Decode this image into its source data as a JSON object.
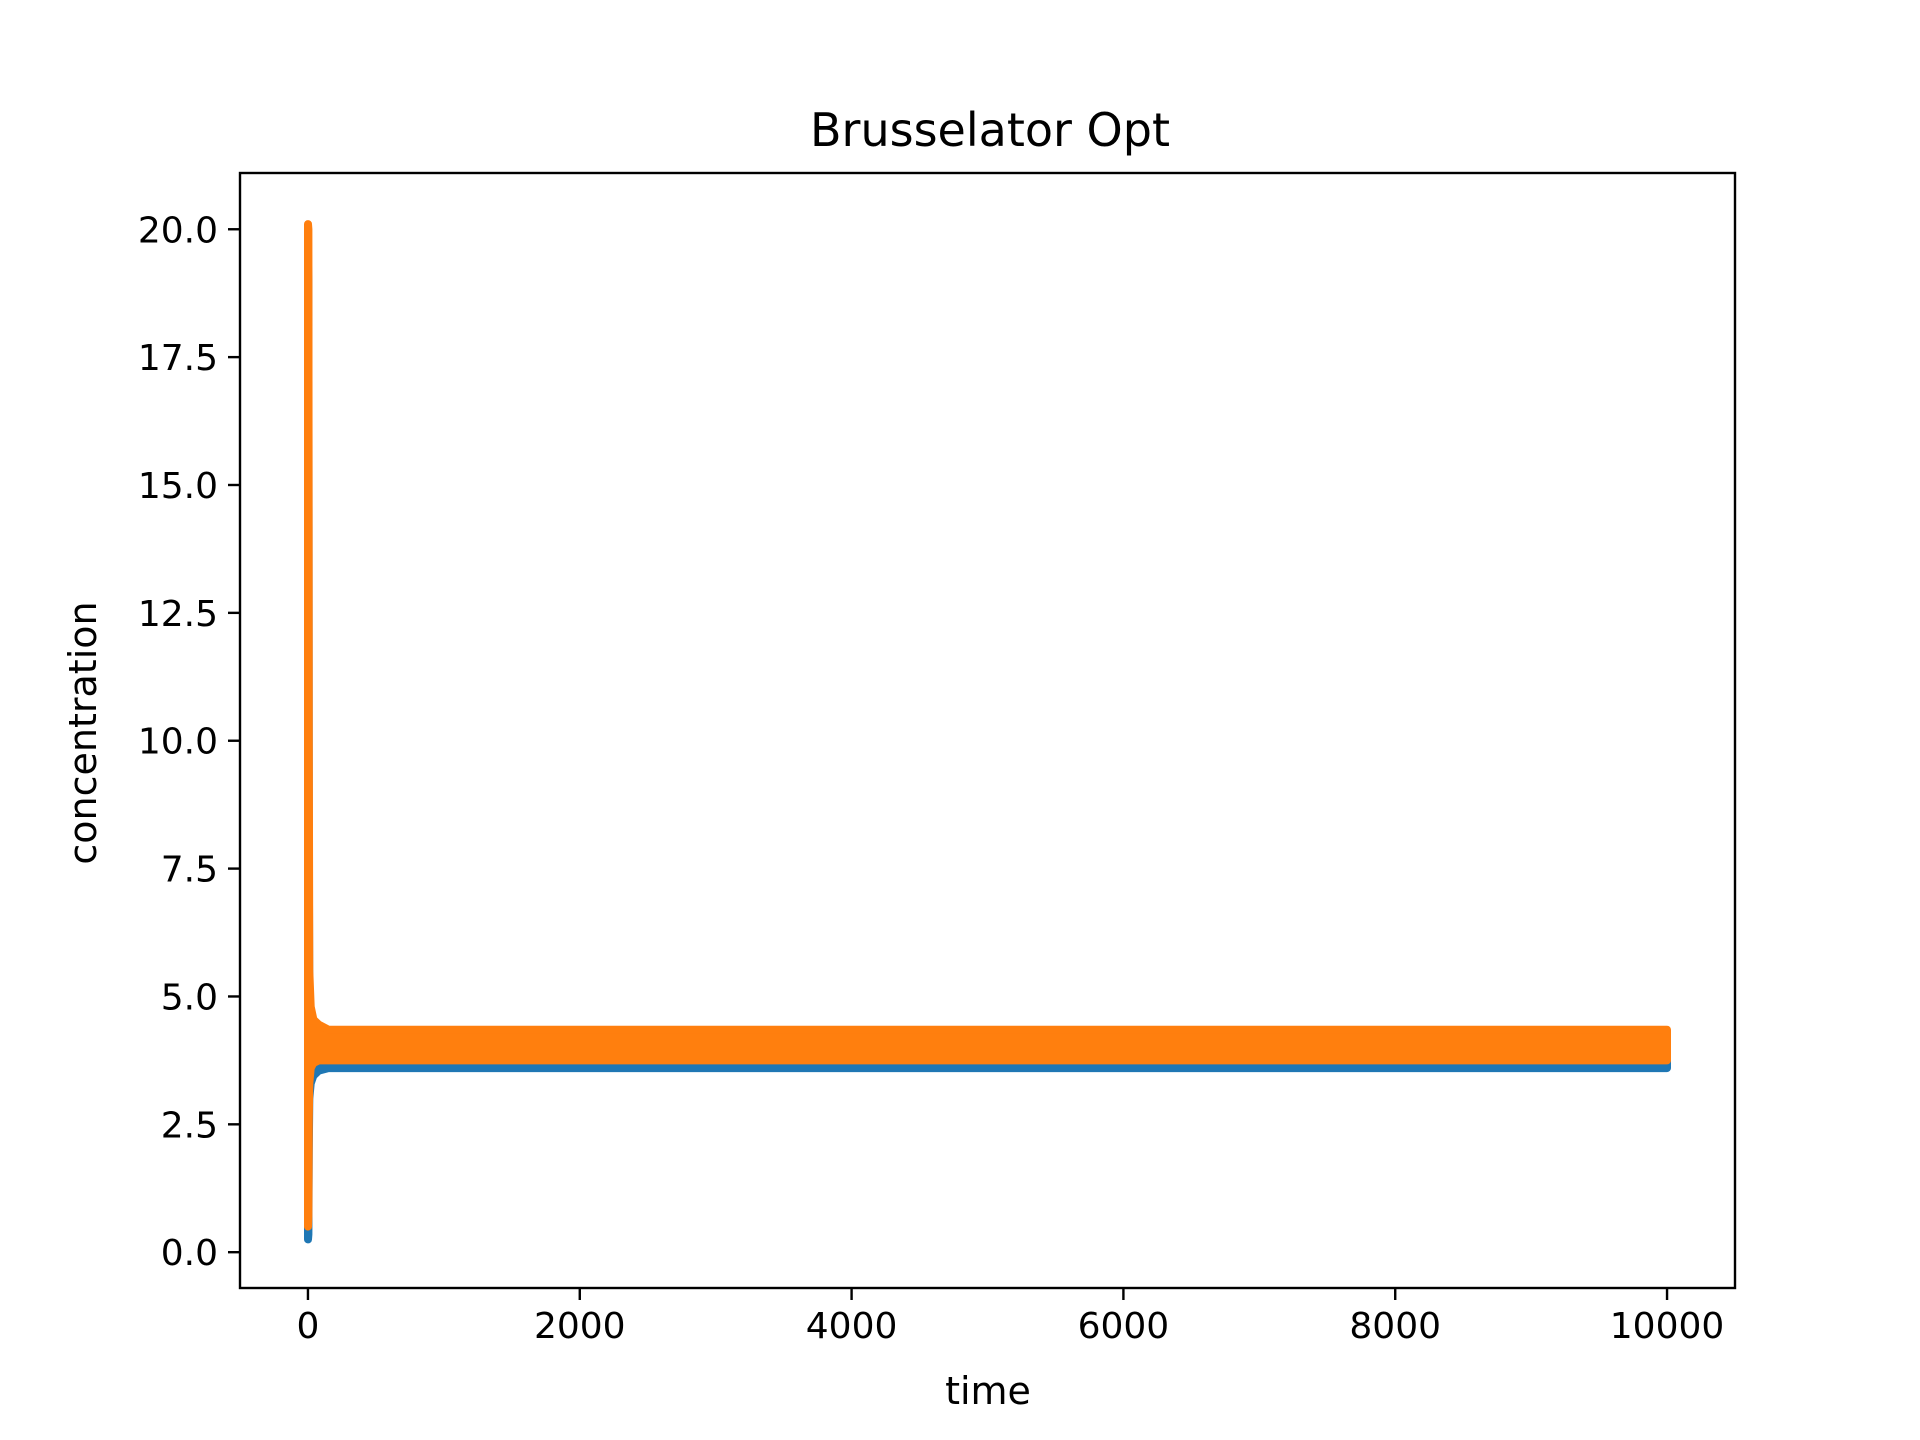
{
  "chart_data": {
    "type": "line",
    "title": "Brusselator Opt",
    "xlabel": "time",
    "ylabel": "concentration",
    "xlim": [
      -500,
      10500
    ],
    "ylim": [
      -0.7,
      21.1
    ],
    "x_ticks": [
      0,
      2000,
      4000,
      6000,
      8000,
      10000
    ],
    "x_tick_labels": [
      "0",
      "2000",
      "4000",
      "6000",
      "8000",
      "10000"
    ],
    "y_ticks": [
      0.0,
      2.5,
      5.0,
      7.5,
      10.0,
      12.5,
      15.0,
      17.5,
      20.0
    ],
    "y_tick_labels": [
      "0.0",
      "2.5",
      "5.0",
      "7.5",
      "10.0",
      "12.5",
      "15.0",
      "17.5",
      "20.0"
    ],
    "grid": false,
    "legend": "none",
    "series": [
      {
        "color": "#1f77b4",
        "x": [
          0,
          3,
          6,
          10,
          20,
          40,
          80,
          150,
          300,
          1000,
          2000,
          4000,
          6000,
          8000,
          10000
        ],
        "y_min": [
          0.25,
          0.35,
          2.0,
          3.0,
          3.3,
          3.45,
          3.55,
          3.6,
          3.6,
          3.6,
          3.6,
          3.6,
          3.6,
          3.6,
          3.6
        ],
        "y_max": [
          19.3,
          19.0,
          8.0,
          5.0,
          4.4,
          4.0,
          3.85,
          3.8,
          3.8,
          3.8,
          3.8,
          3.8,
          3.8,
          3.8,
          3.8
        ]
      },
      {
        "color": "#ff7f0e",
        "x": [
          0,
          3,
          6,
          10,
          20,
          40,
          80,
          150,
          300,
          1000,
          2000,
          4000,
          6000,
          8000,
          10000
        ],
        "y_min": [
          0.5,
          0.7,
          2.6,
          3.3,
          3.6,
          3.7,
          3.75,
          3.75,
          3.75,
          3.75,
          3.75,
          3.75,
          3.75,
          3.75,
          3.75
        ],
        "y_max": [
          20.1,
          20.0,
          10.0,
          5.5,
          4.8,
          4.55,
          4.45,
          4.35,
          4.35,
          4.35,
          4.35,
          4.35,
          4.35,
          4.35,
          4.35
        ]
      }
    ]
  }
}
